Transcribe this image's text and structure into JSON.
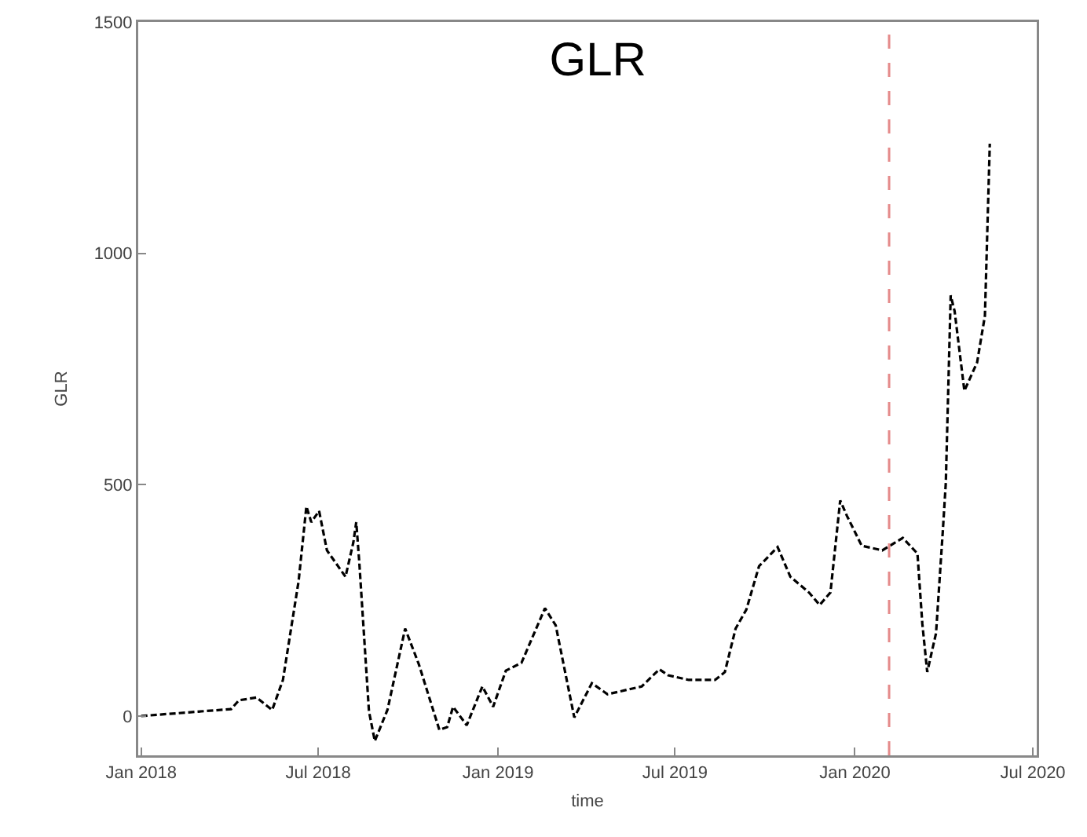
{
  "chart_data": {
    "type": "line",
    "title": "GLR",
    "xlabel": "time",
    "ylabel": "GLR",
    "x": [
      "2018-01-01",
      "2018-04-03",
      "2018-04-11",
      "2018-04-29",
      "2018-05-15",
      "2018-05-26",
      "2018-06-11",
      "2018-06-19",
      "2018-06-24",
      "2018-07-02",
      "2018-07-10",
      "2018-07-29",
      "2018-08-06",
      "2018-08-09",
      "2018-08-12",
      "2018-08-22",
      "2018-08-28",
      "2018-09-10",
      "2018-09-28",
      "2018-10-12",
      "2018-11-02",
      "2018-11-10",
      "2018-11-16",
      "2018-11-30",
      "2018-12-16",
      "2018-12-27",
      "2019-01-09",
      "2019-01-25",
      "2019-02-18",
      "2019-03-01",
      "2019-03-20",
      "2019-04-07",
      "2019-04-23",
      "2019-05-28",
      "2019-06-15",
      "2019-06-24",
      "2019-07-15",
      "2019-08-11",
      "2019-08-21",
      "2019-09-01",
      "2019-09-12",
      "2019-09-25",
      "2019-10-14",
      "2019-10-27",
      "2019-11-15",
      "2019-11-26",
      "2019-12-07",
      "2019-12-17",
      "2019-12-24",
      "2020-01-08",
      "2020-01-29",
      "2020-02-19",
      "2020-03-05",
      "2020-03-10",
      "2020-03-15",
      "2020-03-24",
      "2020-03-31",
      "2020-04-03",
      "2020-04-08",
      "2020-04-12",
      "2020-04-22",
      "2020-05-05",
      "2020-05-13",
      "2020-05-18"
    ],
    "series": [
      {
        "color": "#000000",
        "line_style": "dashed",
        "values": [
          0,
          15,
          34,
          40,
          13,
          78,
          291,
          453,
          419,
          443,
          358,
          301,
          375,
          419,
          335,
          10,
          -54,
          14,
          189,
          112,
          -30,
          -24,
          20,
          -20,
          64,
          20,
          98,
          115,
          233,
          196,
          -3,
          71,
          47,
          64,
          101,
          88,
          78,
          78,
          95,
          189,
          230,
          324,
          365,
          301,
          267,
          240,
          267,
          466,
          432,
          368,
          358,
          385,
          351,
          199,
          95,
          179,
          402,
          504,
          909,
          875,
          703,
          764,
          865,
          1237
        ]
      }
    ],
    "xlim": [
      "2017-12-29",
      "2020-07-05"
    ],
    "xticks": [
      {
        "value": "2018-01-01",
        "label": "Jan 2018"
      },
      {
        "value": "2018-07-01",
        "label": "Jul 2018"
      },
      {
        "value": "2019-01-01",
        "label": "Jan 2019"
      },
      {
        "value": "2019-07-01",
        "label": "Jul 2019"
      },
      {
        "value": "2020-01-01",
        "label": "Jan 2020"
      },
      {
        "value": "2020-07-01",
        "label": "Jul 2020"
      }
    ],
    "ylim": [
      -85,
      1500
    ],
    "yticks": [
      0,
      500,
      1000,
      1500
    ],
    "ref_lines": [
      {
        "axis": "x",
        "value": "2020-02-05",
        "color": "#e58a8a",
        "line_style": "dashed"
      }
    ],
    "grid": false,
    "marker": "none"
  }
}
